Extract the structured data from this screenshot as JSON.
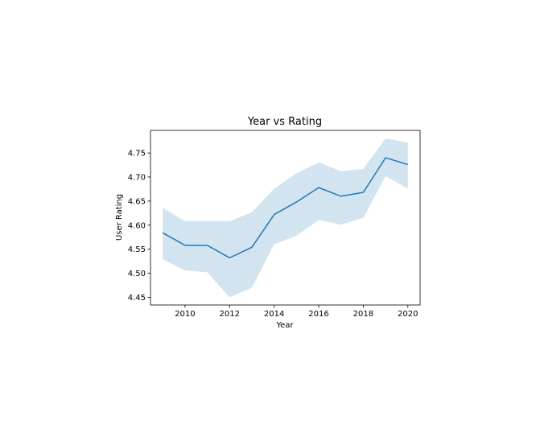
{
  "chart_data": {
    "type": "line",
    "title": "Year vs Rating",
    "xlabel": "Year",
    "ylabel": "User Rating",
    "x": [
      2009,
      2010,
      2011,
      2012,
      2013,
      2014,
      2015,
      2016,
      2017,
      2018,
      2019,
      2020
    ],
    "series": [
      {
        "values": [
          4.584,
          4.558,
          4.558,
          4.532,
          4.554,
          4.622,
          4.648,
          4.678,
          4.66,
          4.668,
          4.74,
          4.726
        ],
        "ci_upper": [
          4.636,
          4.608,
          4.609,
          4.608,
          4.627,
          4.676,
          4.708,
          4.73,
          4.712,
          4.717,
          4.78,
          4.772
        ],
        "ci_lower": [
          4.529,
          4.506,
          4.502,
          4.45,
          4.47,
          4.56,
          4.578,
          4.611,
          4.601,
          4.615,
          4.702,
          4.676
        ]
      }
    ],
    "xticks": [
      "2010",
      "2012",
      "2014",
      "2016",
      "2018",
      "2020"
    ],
    "yticks": [
      "4.45",
      "4.50",
      "4.55",
      "4.60",
      "4.65",
      "4.70",
      "4.75"
    ],
    "xlim": [
      2008.45,
      2020.55
    ],
    "ylim": [
      4.434,
      4.797
    ],
    "grid": false,
    "colors": {
      "line": "#1f77b4",
      "band": "#1f77b4"
    }
  }
}
